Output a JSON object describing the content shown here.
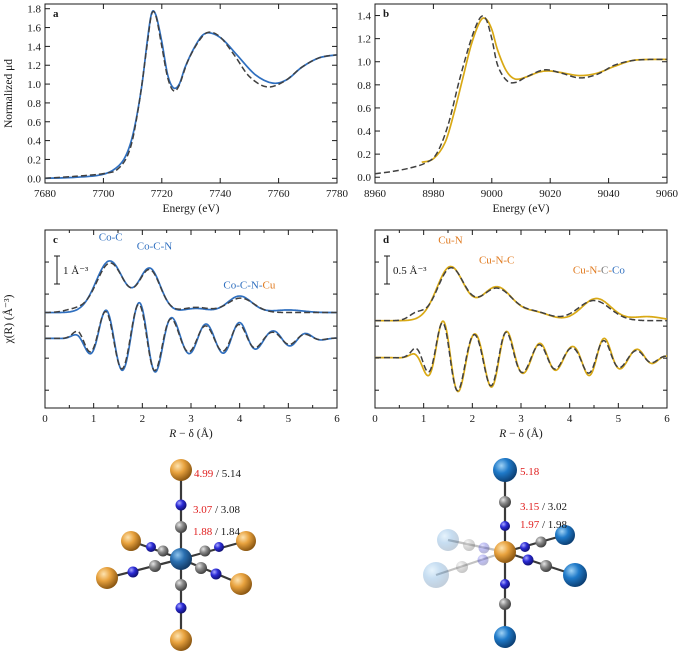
{
  "chart_data": [
    {
      "type": "line",
      "panel_label": "a",
      "xlabel": "Energy (eV)",
      "ylabel": "Normalized μd",
      "xlim": [
        7680,
        7780
      ],
      "ylim": [
        -0.05,
        1.85
      ],
      "xticks": [
        7680,
        7700,
        7720,
        7740,
        7760,
        7780
      ],
      "yticks": [
        0.0,
        0.2,
        0.4,
        0.6,
        0.8,
        1.0,
        1.2,
        1.4,
        1.6,
        1.8
      ],
      "ytick_labels": [
        "0.0",
        "0.2",
        "0.4",
        "0.6",
        "0.8",
        "1.0",
        "1.2",
        "1.4",
        "1.6",
        "1.8"
      ],
      "series": [
        {
          "style": "solid",
          "color": "#2f6fbf",
          "x": [
            7680,
            7690,
            7698,
            7703,
            7707,
            7710,
            7713,
            7715,
            7716.5,
            7718,
            7720,
            7722,
            7724,
            7726,
            7728,
            7731,
            7734,
            7737,
            7741,
            7746,
            7752,
            7758,
            7763,
            7768,
            7774,
            7780
          ],
          "y": [
            0.0,
            0.01,
            0.03,
            0.08,
            0.2,
            0.45,
            0.95,
            1.45,
            1.75,
            1.73,
            1.45,
            1.1,
            0.96,
            1.0,
            1.18,
            1.38,
            1.52,
            1.54,
            1.47,
            1.3,
            1.1,
            1.01,
            1.05,
            1.18,
            1.28,
            1.31
          ]
        },
        {
          "style": "dashed",
          "color": "#404040",
          "x": [
            7680,
            7690,
            7700,
            7705,
            7709,
            7712,
            7715,
            7716.5,
            7718,
            7720,
            7722,
            7724,
            7726,
            7729,
            7733,
            7736,
            7740,
            7745,
            7750,
            7756,
            7762,
            7768,
            7774,
            7780
          ],
          "y": [
            0.0,
            0.02,
            0.05,
            0.1,
            0.3,
            0.75,
            1.42,
            1.74,
            1.72,
            1.4,
            1.07,
            0.93,
            0.99,
            1.25,
            1.47,
            1.55,
            1.5,
            1.3,
            1.08,
            0.97,
            1.03,
            1.18,
            1.28,
            1.31
          ]
        }
      ]
    },
    {
      "type": "line",
      "panel_label": "b",
      "xlabel": "Energy (eV)",
      "ylabel": "",
      "xlim": [
        8960,
        9060
      ],
      "ylim": [
        -0.05,
        1.5
      ],
      "xticks": [
        8960,
        8980,
        9000,
        9020,
        9040,
        9060
      ],
      "yticks": [
        0.0,
        0.2,
        0.4,
        0.6,
        0.8,
        1.0,
        1.2,
        1.4
      ],
      "ytick_labels": [
        "0.0",
        "0.2",
        "0.4",
        "0.6",
        "0.8",
        "1.0",
        "1.2",
        "1.4"
      ],
      "series": [
        {
          "style": "solid",
          "color": "#d9a915",
          "x": [
            8976,
            8980,
            8984,
            8987,
            8990,
            8993,
            8996,
            8998,
            9000,
            9002,
            9005,
            9008,
            9012,
            9016,
            9020,
            9025,
            9030,
            9036,
            9042,
            9048,
            9054,
            9060
          ],
          "y": [
            0.13,
            0.16,
            0.3,
            0.55,
            0.85,
            1.15,
            1.35,
            1.37,
            1.28,
            1.1,
            0.92,
            0.85,
            0.87,
            0.91,
            0.92,
            0.9,
            0.88,
            0.9,
            0.96,
            1.01,
            1.02,
            1.02
          ]
        },
        {
          "style": "dashed",
          "color": "#404040",
          "x": [
            8960,
            8966,
            8972,
            8977,
            8981,
            8985,
            8989,
            8993,
            8996,
            8998,
            9000,
            9002,
            9005,
            9008,
            9012,
            9018,
            9024,
            9030,
            9036,
            9042,
            9048,
            9054,
            9060
          ],
          "y": [
            0.03,
            0.05,
            0.08,
            0.12,
            0.2,
            0.45,
            0.85,
            1.2,
            1.38,
            1.37,
            1.2,
            0.97,
            0.84,
            0.82,
            0.87,
            0.93,
            0.9,
            0.86,
            0.89,
            0.97,
            1.01,
            1.02,
            1.02
          ]
        }
      ]
    },
    {
      "type": "line",
      "panel_label": "c",
      "xlabel": "R − δ (Å)",
      "ylabel": "χ(R) (Å⁻³)",
      "xlim": [
        0,
        6
      ],
      "ylim": [
        -1.85,
        1.6
      ],
      "xticks": [
        0,
        0.5,
        1,
        1.5,
        2,
        2.5,
        3,
        3.5,
        4,
        4.5,
        5,
        5.5,
        6
      ],
      "xtick_labels": [
        "0",
        "",
        "1",
        "",
        "2",
        "",
        "3",
        "",
        "4",
        "",
        "5",
        "",
        "6"
      ],
      "scale_bar": "1 Å⁻³",
      "annotations": [
        {
          "parts": [
            {
              "text": "Co-C",
              "color": "#2f6fbf"
            }
          ],
          "x": 1.35,
          "y": 1.4
        },
        {
          "parts": [
            {
              "text": "Co-C-N",
              "color": "#2f6fbf"
            }
          ],
          "x": 2.25,
          "y": 1.22
        },
        {
          "parts": [
            {
              "text": "Co-C-N-",
              "color": "#2f6fbf"
            },
            {
              "text": "Cu",
              "color": "#e07a1f"
            }
          ],
          "x": 4.2,
          "y": 0.47
        }
      ],
      "series": [
        {
          "name": "magnitude",
          "style": "solid",
          "color": "#2f6fbf",
          "x": [],
          "y": []
        },
        {
          "name": "magnitude fit",
          "style": "dashed",
          "color": "#404040",
          "x": [],
          "y": []
        },
        {
          "name": "imaginary part",
          "style": "solid",
          "color": "#2f6fbf",
          "x": [],
          "y": []
        },
        {
          "name": "imaginary part fit",
          "style": "dashed",
          "color": "#404040",
          "x": [],
          "y": []
        }
      ]
    },
    {
      "type": "line",
      "panel_label": "d",
      "xlabel": "R − δ (Å)",
      "ylabel": "",
      "xlim": [
        0,
        6
      ],
      "ylim": [
        -1.3,
        1.35
      ],
      "xticks": [
        0,
        0.5,
        1,
        1.5,
        2,
        2.5,
        3,
        3.5,
        4,
        4.5,
        5,
        5.5,
        6
      ],
      "xtick_labels": [
        "0",
        "",
        "1",
        "",
        "2",
        "",
        "3",
        "",
        "4",
        "",
        "5",
        "",
        "6"
      ],
      "scale_bar": "0.5 Å⁻³",
      "annotations": [
        {
          "parts": [
            {
              "text": "Cu-N",
              "color": "#e07a1f"
            }
          ],
          "x": 1.55,
          "y": 1.15
        },
        {
          "parts": [
            {
              "text": "Cu-N-C",
              "color": "#e07a1f"
            }
          ],
          "x": 2.5,
          "y": 0.85
        },
        {
          "parts": [
            {
              "text": "Cu-N-",
              "color": "#e07a1f"
            },
            {
              "text": "C",
              "color": "#777777"
            },
            {
              "text": "-",
              "color": "#e07a1f"
            },
            {
              "text": "Co",
              "color": "#2f6fbf"
            }
          ],
          "x": 4.6,
          "y": 0.7
        }
      ],
      "series": [
        {
          "name": "magnitude",
          "style": "solid",
          "color": "#d9a915",
          "x": [],
          "y": []
        },
        {
          "name": "magnitude fit",
          "style": "dashed",
          "color": "#404040",
          "x": [],
          "y": []
        },
        {
          "name": "imaginary part",
          "style": "solid",
          "color": "#d9a915",
          "x": [],
          "y": []
        },
        {
          "name": "imaginary part fit",
          "style": "dashed",
          "color": "#404040",
          "x": [],
          "y": []
        }
      ]
    }
  ],
  "structures": {
    "left": {
      "center_atom": "Co",
      "ligand_terminus": "Cu",
      "distances": [
        {
          "fit": "4.99",
          "ref": "5.14"
        },
        {
          "fit": "3.07",
          "ref": "3.08"
        },
        {
          "fit": "1.88",
          "ref": "1.84"
        }
      ]
    },
    "right": {
      "center_atom": "Cu",
      "ligand_terminus": "Co",
      "distances": [
        {
          "fit": "5.18",
          "ref": ""
        },
        {
          "fit": "3.15",
          "ref": "3.02"
        },
        {
          "fit": "1.97",
          "ref": "1.98"
        }
      ]
    }
  },
  "colors": {
    "cobalt_series": "#2f6fbf",
    "copper_series": "#d9a915",
    "fit": "#404040",
    "label_cu": "#e07a1f",
    "distance_red": "#e02020"
  }
}
